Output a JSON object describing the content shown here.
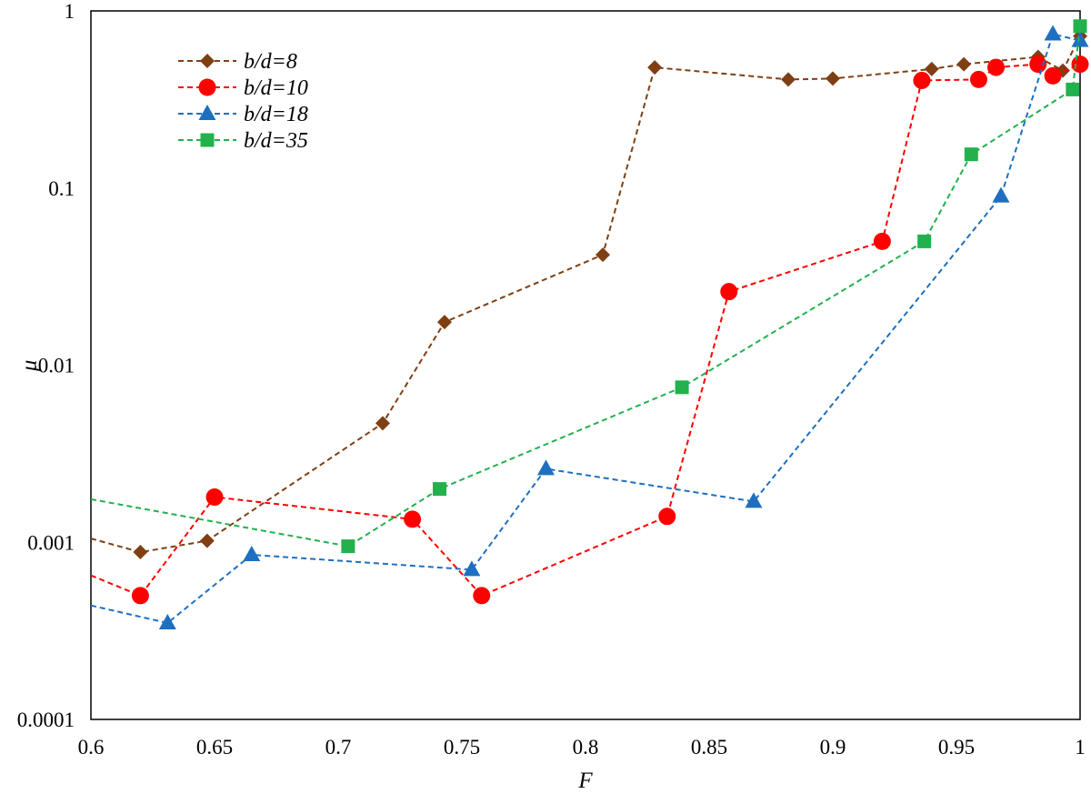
{
  "chart_data": {
    "type": "line",
    "title": "",
    "xlabel": "F",
    "ylabel": "μ",
    "xlim": [
      0.6,
      1.0
    ],
    "ylim": [
      0.0001,
      1
    ],
    "y_scale": "log",
    "grid": false,
    "legend_position": "top-left",
    "x_ticks": [
      "0.6",
      "0.65",
      "0.7",
      "0.75",
      "0.8",
      "0.85",
      "0.9",
      "0.95",
      "1"
    ],
    "y_ticks": [
      "0.0001",
      "0.001",
      "0.01",
      "0.1",
      "1"
    ],
    "series": [
      {
        "name": "b/d=8",
        "color": "#7f3f13",
        "marker": "diamond",
        "x": [
          0.6,
          0.62,
          0.647,
          0.718,
          0.743,
          0.807,
          0.828,
          0.882,
          0.9,
          0.94,
          0.953,
          0.983,
          0.993,
          1.0
        ],
        "y": [
          0.00105,
          0.00088,
          0.00102,
          0.0047,
          0.0175,
          0.042,
          0.48,
          0.41,
          0.415,
          0.47,
          0.5,
          0.55,
          0.46,
          0.72
        ]
      },
      {
        "name": "b/d=10",
        "color": "#ff0000",
        "marker": "circle",
        "x": [
          0.6,
          0.62,
          0.65,
          0.73,
          0.758,
          0.833,
          0.858,
          0.92,
          0.936,
          0.959,
          0.966,
          0.983,
          0.989,
          1.0
        ],
        "y": [
          0.00065,
          0.0005,
          0.0018,
          0.00135,
          0.0005,
          0.0014,
          0.026,
          0.05,
          0.405,
          0.41,
          0.48,
          0.5,
          0.43,
          0.5
        ]
      },
      {
        "name": "b/d=18",
        "color": "#1e6fc0",
        "marker": "triangle",
        "x": [
          0.6,
          0.631,
          0.665,
          0.754,
          0.784,
          0.868,
          0.968,
          0.989,
          1.0
        ],
        "y": [
          0.00044,
          0.00035,
          0.00085,
          0.0007,
          0.0026,
          0.0017,
          0.09,
          0.74,
          0.68
        ]
      },
      {
        "name": "b/d=35",
        "color": "#22b14c",
        "marker": "square",
        "x": [
          0.6,
          0.704,
          0.741,
          0.839,
          0.937,
          0.956,
          0.997,
          1.0
        ],
        "y": [
          0.00175,
          0.00095,
          0.002,
          0.0075,
          0.05,
          0.155,
          0.36,
          0.82
        ]
      }
    ]
  }
}
